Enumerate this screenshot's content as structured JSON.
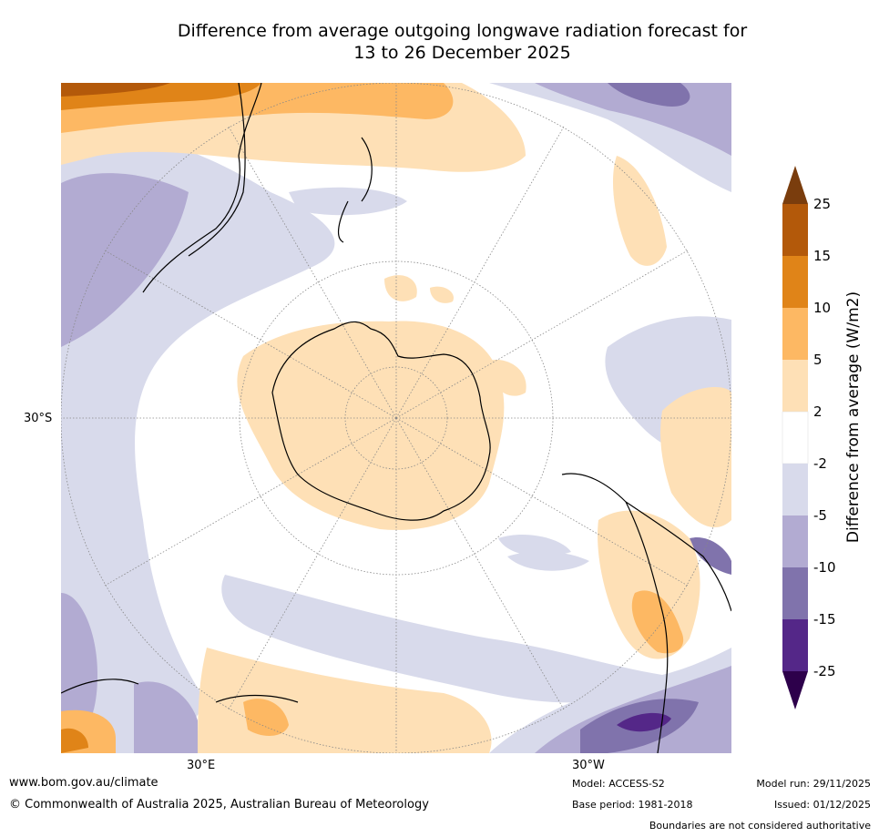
{
  "title": {
    "line1": "Difference from average outgoing longwave radiation forecast for",
    "line2": "13 to 26 December 2025"
  },
  "map": {
    "projection": "South polar stereographic",
    "labels": {
      "lat": "30°S",
      "lon_east": "30°E",
      "lon_west": "30°W"
    }
  },
  "legend": {
    "title": "Difference from average (W/m2)",
    "ticks": [
      "25",
      "15",
      "10",
      "5",
      "2",
      "-2",
      "-5",
      "-10",
      "-15",
      "-25"
    ],
    "colors": {
      "gt25": "#7a3d0d",
      "15_25": "#b3590a",
      "10_15": "#e08418",
      "5_10": "#fdb863",
      "2_5": "#fee0b6",
      "-2_2": "#ffffff",
      "-5_-2": "#d8daeb",
      "-10_-5": "#b2abd2",
      "-15_-10": "#8073ac",
      "-25_-15": "#542788",
      "lt-25": "#2d004b"
    }
  },
  "footer": {
    "website": "www.bom.gov.au/climate",
    "copyright": "© Commonwealth of Australia 2025, Australian Bureau of Meteorology",
    "model": "Model: ACCESS-S2",
    "base_period": "Base period: 1981-2018",
    "model_run": "Model run: 29/11/2025",
    "issued": "Issued: 01/12/2025",
    "disclaimer": "Boundaries are not considered authoritative"
  }
}
